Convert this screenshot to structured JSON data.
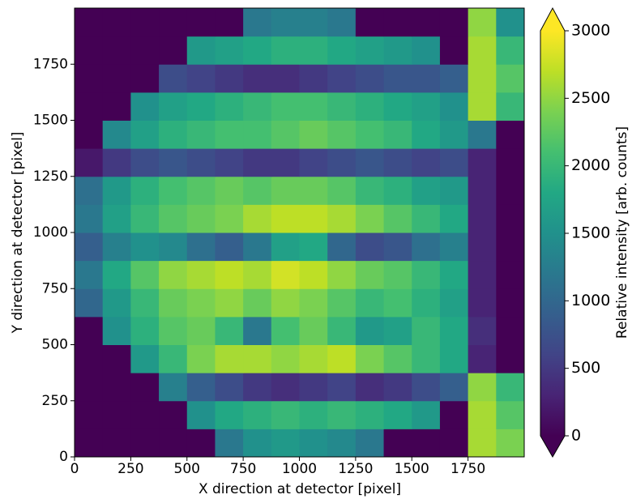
{
  "chart_data": {
    "type": "heatmap",
    "xlabel": "X direction at detector [pixel]",
    "ylabel": "Y direction at detector [pixel]",
    "xlim": [
      0,
      2000
    ],
    "ylim": [
      0,
      2000
    ],
    "xticks": [
      0,
      250,
      500,
      750,
      1000,
      1250,
      1500,
      1750
    ],
    "yticks": [
      0,
      250,
      500,
      750,
      1000,
      1250,
      1500,
      1750
    ],
    "colormap": "viridis",
    "colorbar": {
      "label": "Relative intensity [arb. counts]",
      "clim": [
        0,
        3000
      ],
      "ticks": [
        0,
        500,
        1000,
        1500,
        2000,
        2500,
        3000
      ],
      "extend": "both"
    },
    "z": [
      [
        0,
        0,
        0,
        0,
        0,
        1200,
        1500,
        1600,
        1500,
        1400,
        1200,
        0,
        0,
        0,
        2600,
        2400
      ],
      [
        0,
        0,
        0,
        0,
        1500,
        1800,
        1900,
        2000,
        1900,
        2000,
        1900,
        1800,
        1600,
        0,
        2600,
        2200
      ],
      [
        0,
        0,
        0,
        1300,
        900,
        700,
        500,
        400,
        500,
        600,
        400,
        500,
        700,
        900,
        2500,
        2000
      ],
      [
        0,
        0,
        1600,
        2000,
        2400,
        2600,
        2600,
        2500,
        2600,
        2700,
        2400,
        2200,
        2000,
        1800,
        300,
        0
      ],
      [
        0,
        1500,
        1900,
        2200,
        2300,
        2000,
        1200,
        2100,
        2300,
        2000,
        1600,
        1700,
        2000,
        1800,
        400,
        0
      ],
      [
        1000,
        1600,
        2000,
        2300,
        2400,
        2500,
        2300,
        2500,
        2400,
        2200,
        2000,
        2100,
        1900,
        1700,
        300,
        0
      ],
      [
        1200,
        1800,
        2200,
        2500,
        2600,
        2700,
        2600,
        2800,
        2700,
        2500,
        2300,
        2200,
        2000,
        1800,
        300,
        0
      ],
      [
        900,
        1300,
        1500,
        1400,
        1100,
        900,
        1200,
        1700,
        1800,
        1000,
        700,
        800,
        1100,
        1300,
        300,
        0
      ],
      [
        1200,
        1700,
        2000,
        2200,
        2300,
        2400,
        2600,
        2700,
        2700,
        2600,
        2400,
        2200,
        2000,
        1800,
        300,
        0
      ],
      [
        1100,
        1600,
        1900,
        2100,
        2200,
        2300,
        2200,
        2300,
        2300,
        2200,
        2000,
        1900,
        1700,
        1600,
        300,
        0
      ],
      [
        200,
        500,
        700,
        800,
        700,
        600,
        500,
        500,
        600,
        700,
        800,
        700,
        600,
        700,
        300,
        0
      ],
      [
        0,
        1400,
        1700,
        1900,
        2000,
        2100,
        2100,
        2200,
        2300,
        2200,
        2100,
        2000,
        1800,
        1600,
        1200,
        0
      ],
      [
        0,
        0,
        1500,
        1700,
        1800,
        1900,
        2000,
        2100,
        2100,
        2000,
        1900,
        1800,
        1700,
        1500,
        2600,
        2000
      ],
      [
        0,
        0,
        0,
        700,
        600,
        500,
        400,
        400,
        500,
        600,
        700,
        800,
        800,
        900,
        2600,
        2200
      ],
      [
        0,
        0,
        0,
        0,
        1600,
        1700,
        1800,
        1900,
        1900,
        1800,
        1700,
        1600,
        1500,
        0,
        2600,
        2000
      ],
      [
        0,
        0,
        0,
        0,
        0,
        0,
        1200,
        1300,
        1300,
        1200,
        0,
        0,
        0,
        0,
        2500,
        1500
      ]
    ]
  }
}
